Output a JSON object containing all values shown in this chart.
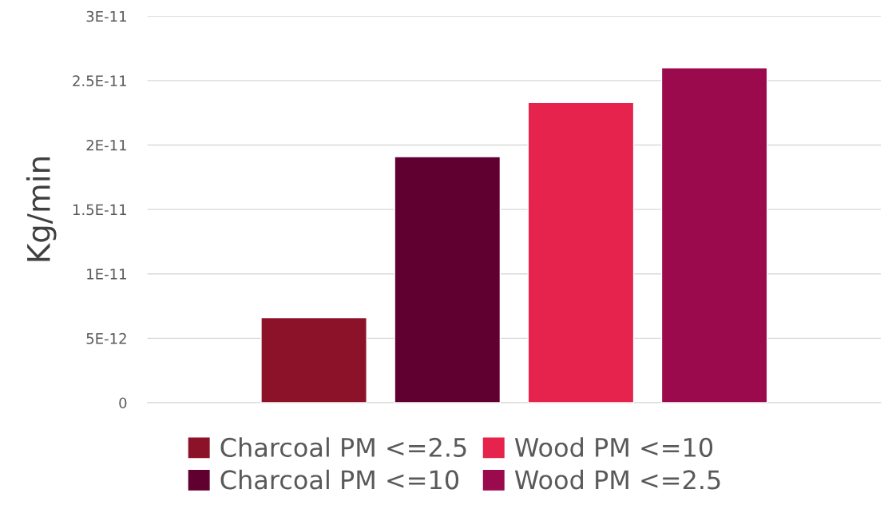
{
  "chart_data": {
    "type": "bar",
    "ylabel": "Kg/min",
    "categories": [
      null
    ],
    "series": [
      {
        "name": "Charcoal PM <=2.5",
        "color": "#8c1229",
        "values": [
          6.6e-12
        ]
      },
      {
        "name": "Charcoal PM <=10",
        "color": "#600030",
        "values": [
          1.91e-11
        ]
      },
      {
        "name": "Wood PM <=10",
        "color": "#e5234d",
        "values": [
          2.33e-11
        ]
      },
      {
        "name": "Wood PM <=2.5",
        "color": "#9c0a4e",
        "values": [
          2.6e-11
        ]
      }
    ],
    "ylim": [
      0,
      3e-11
    ],
    "yticks": [
      {
        "value": 0,
        "label": "0"
      },
      {
        "value": 5e-12,
        "label": "5E-12"
      },
      {
        "value": 1e-11,
        "label": "1E-11"
      },
      {
        "value": 1.5e-11,
        "label": "1.5E-11"
      },
      {
        "value": 2e-11,
        "label": "2E-11"
      },
      {
        "value": 2.5e-11,
        "label": "2.5E-11"
      },
      {
        "value": 3e-11,
        "label": "3E-11"
      }
    ],
    "grid": "y",
    "legend": "bottom"
  }
}
